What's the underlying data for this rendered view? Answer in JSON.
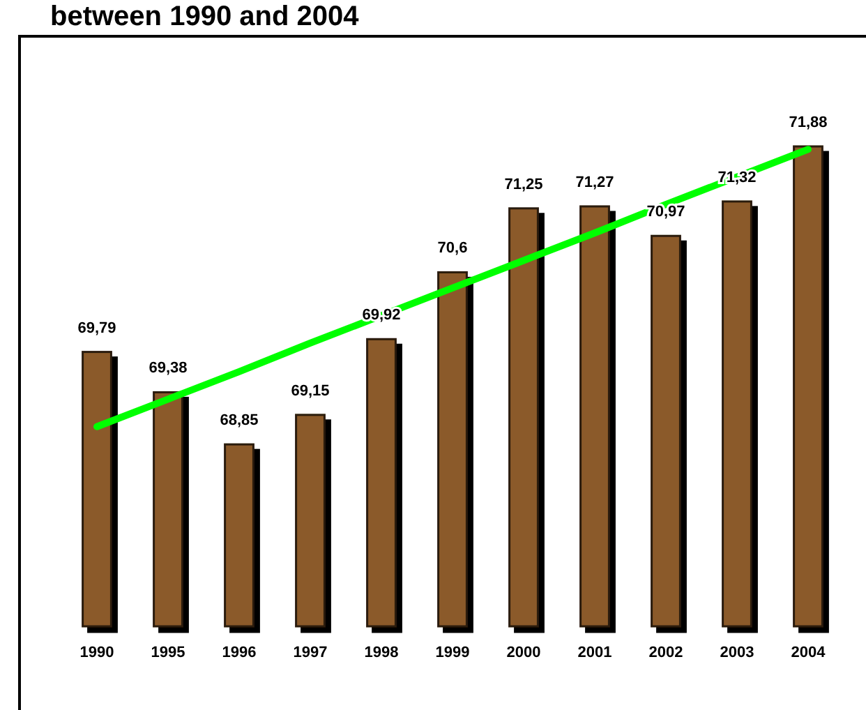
{
  "chart_data": {
    "type": "bar",
    "title": "between 1990 and 2004",
    "categories": [
      "1990",
      "1995",
      "1996",
      "1997",
      "1998",
      "1999",
      "2000",
      "2001",
      "2002",
      "2003",
      "2004"
    ],
    "ylim": [
      67,
      73
    ],
    "tick_labels": "x",
    "series": [
      {
        "color": "#8b5a2b",
        "values": [
          69.79,
          69.38,
          68.85,
          69.15,
          69.92,
          70.6,
          71.25,
          71.27,
          70.97,
          71.32,
          71.88
        ],
        "value_labels": [
          "69,79",
          "69,38",
          "68,85",
          "69,15",
          "69,92",
          "70,6",
          "71,25",
          "71,27",
          "70,97",
          "71,32",
          "71,88"
        ]
      },
      {
        "type": "line",
        "color": "#00ff00",
        "values": [
          69.03,
          69.31,
          69.59,
          69.88,
          70.16,
          70.44,
          70.72,
          71.0,
          71.29,
          71.57,
          71.85
        ]
      }
    ]
  }
}
